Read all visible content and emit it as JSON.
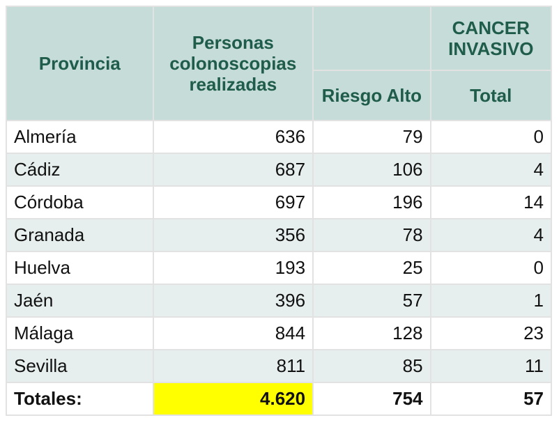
{
  "table": {
    "header": {
      "provincia": "Provincia",
      "personas": "Personas colonoscopias realizadas",
      "riesgo_alto": "Riesgo Alto",
      "cancer_invasivo": "CANCER INVASIVO",
      "total": "Total"
    },
    "rows": [
      [
        "Almería",
        "636",
        "79",
        "0"
      ],
      [
        "Cádiz",
        "687",
        "106",
        "4"
      ],
      [
        "Córdoba",
        "697",
        "196",
        "14"
      ],
      [
        "Granada",
        "356",
        "78",
        "4"
      ],
      [
        "Huelva",
        "193",
        "25",
        "0"
      ],
      [
        "Jaén",
        "396",
        "57",
        "1"
      ],
      [
        "Málaga",
        "844",
        "128",
        "23"
      ],
      [
        "Sevilla",
        "811",
        "85",
        "11"
      ]
    ],
    "totals": [
      "Totales:",
      "4.620",
      "754",
      "57"
    ]
  }
}
